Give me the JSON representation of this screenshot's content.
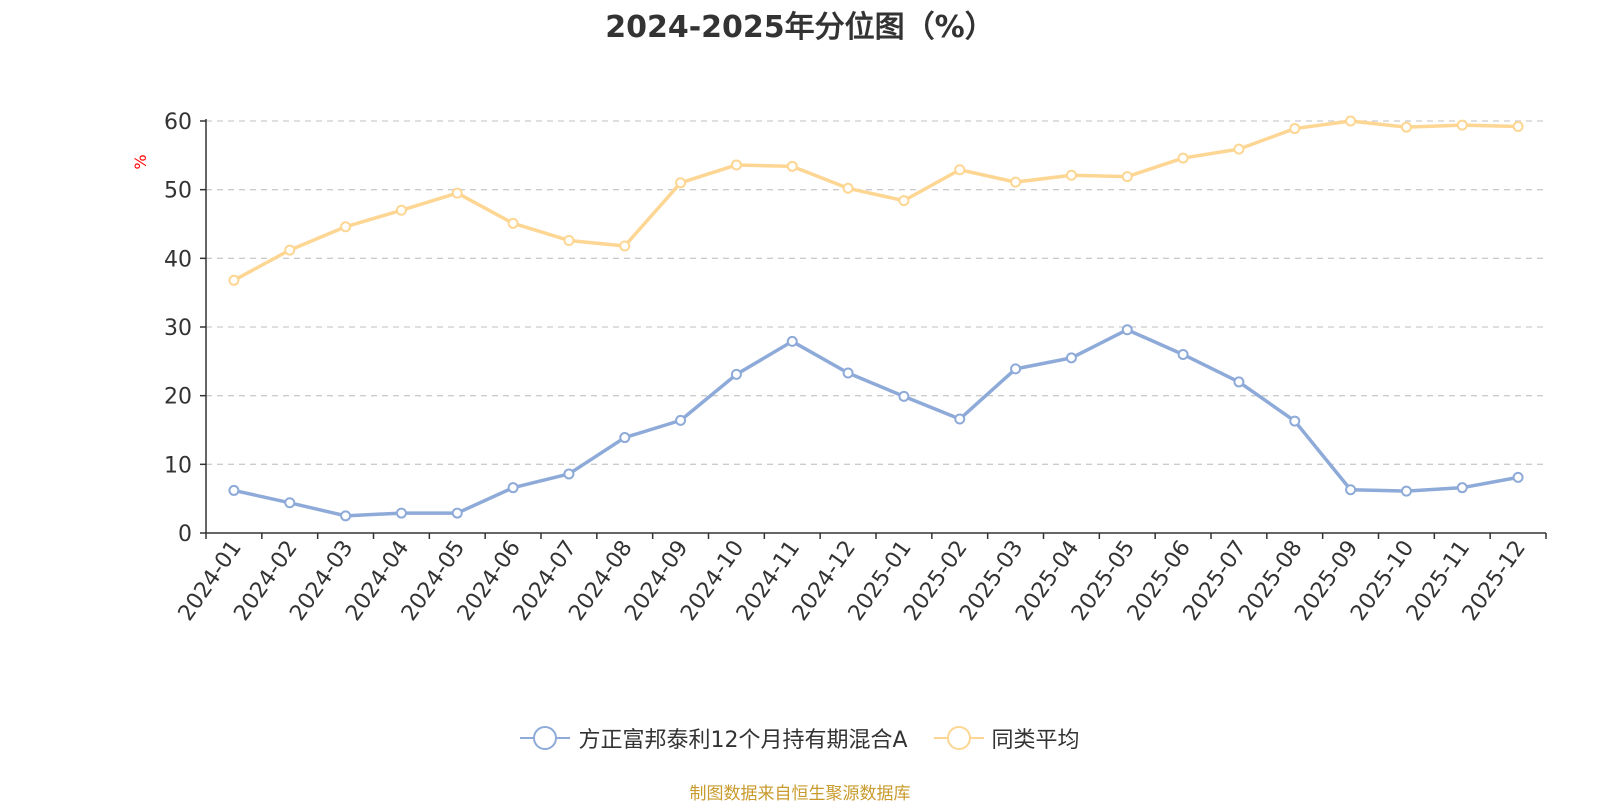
{
  "chart_data": {
    "type": "line",
    "title": "2024-2025年分位图（%）",
    "ylabel": "%",
    "xlabel": "",
    "ylim": [
      0,
      60
    ],
    "yticks": [
      0,
      10,
      20,
      30,
      40,
      50,
      60
    ],
    "grid": true,
    "legend_position": "bottom-center",
    "categories": [
      "2024-01",
      "2024-02",
      "2024-03",
      "2024-04",
      "2024-05",
      "2024-06",
      "2024-07",
      "2024-08",
      "2024-09",
      "2024-10",
      "2024-11",
      "2024-12",
      "2025-01",
      "2025-02",
      "2025-03",
      "2025-04",
      "2025-05",
      "2025-06",
      "2025-07",
      "2025-08",
      "2025-09",
      "2025-10",
      "2025-11",
      "2025-12"
    ],
    "series": [
      {
        "name": "方正富邦泰利12个月持有期混合A",
        "color": "#8eaad9",
        "values": [
          6.2,
          4.4,
          2.5,
          2.9,
          2.9,
          6.6,
          8.6,
          13.9,
          16.4,
          23.1,
          27.9,
          23.3,
          19.9,
          16.6,
          23.9,
          25.5,
          29.6,
          26.0,
          22.0,
          16.3,
          6.3,
          6.1,
          6.6,
          8.1
        ]
      },
      {
        "name": "同类平均",
        "color": "#fdd693",
        "values": [
          36.8,
          41.2,
          44.6,
          47.0,
          49.5,
          45.1,
          42.6,
          41.8,
          51.0,
          53.6,
          53.4,
          50.2,
          48.4,
          52.9,
          51.1,
          52.1,
          51.9,
          54.6,
          55.9,
          58.9,
          60.0,
          59.1,
          59.4,
          59.2
        ]
      }
    ]
  },
  "source_text": "制图数据来自恒生聚源数据库"
}
